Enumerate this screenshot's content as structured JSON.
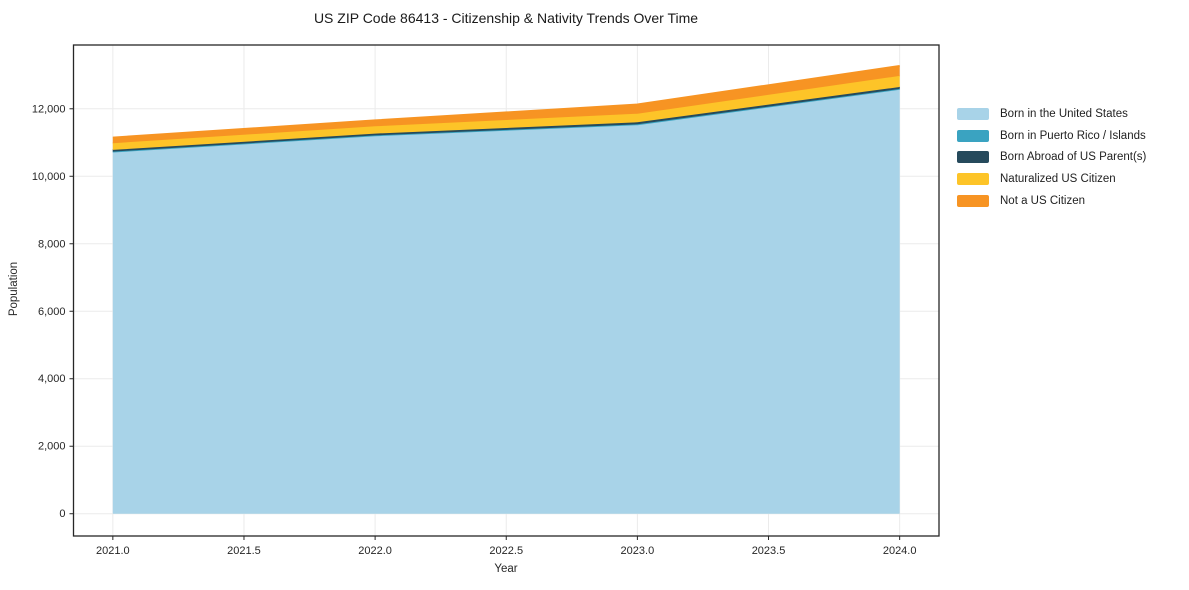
{
  "title": "US ZIP Code 86413 - Citizenship & Nativity Trends Over Time",
  "chart_data": {
    "type": "area",
    "stacked": true,
    "title": "US ZIP Code 86413 - Citizenship & Nativity Trends Over Time",
    "xlabel": "Year",
    "ylabel": "Population",
    "x": [
      2021,
      2022,
      2023,
      2024
    ],
    "series": [
      {
        "name": "Born in the United States",
        "color": "#a8d3e8",
        "values": [
          10720,
          11200,
          11530,
          12580
        ]
      },
      {
        "name": "Born in Puerto Rico / Islands",
        "color": "#3aa3c1",
        "values": [
          10,
          10,
          10,
          10
        ]
      },
      {
        "name": "Born Abroad of US Parent(s)",
        "color": "#264a5c",
        "values": [
          50,
          55,
          60,
          55
        ]
      },
      {
        "name": "Naturalized US Citizen",
        "color": "#fdc428",
        "values": [
          200,
          215,
          255,
          330
        ]
      },
      {
        "name": "Not a US Citizen",
        "color": "#f79423",
        "values": [
          170,
          180,
          275,
          295
        ]
      }
    ],
    "stacked_totals": [
      11150,
      11660,
      12130,
      13270
    ],
    "xticks": [
      2021.0,
      2021.5,
      2022.0,
      2022.5,
      2023.0,
      2023.5,
      2024.0
    ],
    "xtick_labels": [
      "2021.0",
      "2021.5",
      "2022.0",
      "2022.5",
      "2023.0",
      "2023.5",
      "2024.0"
    ],
    "yticks": [
      0,
      2000,
      4000,
      6000,
      8000,
      10000,
      12000
    ],
    "ytick_labels": [
      "0",
      "2,000",
      "4,000",
      "6,000",
      "8,000",
      "10,000",
      "12,000"
    ],
    "xlim": [
      2020.85,
      2024.15
    ],
    "ylim": [
      -660,
      13890
    ],
    "grid": true,
    "legend_position": "right",
    "colors": {
      "grid": "#ebebeb",
      "plot_border": "#262626",
      "tick_label": "#262626",
      "background": "#ffffff"
    }
  }
}
